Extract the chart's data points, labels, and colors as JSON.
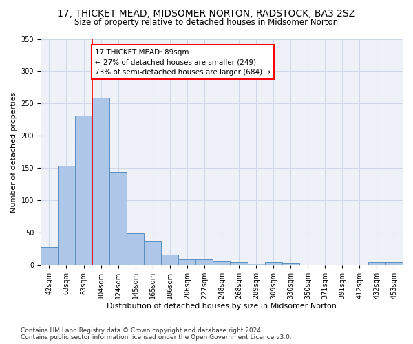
{
  "title": "17, THICKET MEAD, MIDSOMER NORTON, RADSTOCK, BA3 2SZ",
  "subtitle": "Size of property relative to detached houses in Midsomer Norton",
  "xlabel": "Distribution of detached houses by size in Midsomer Norton",
  "ylabel": "Number of detached properties",
  "categories": [
    "42sqm",
    "63sqm",
    "83sqm",
    "104sqm",
    "124sqm",
    "145sqm",
    "165sqm",
    "186sqm",
    "206sqm",
    "227sqm",
    "248sqm",
    "268sqm",
    "289sqm",
    "309sqm",
    "330sqm",
    "350sqm",
    "371sqm",
    "391sqm",
    "412sqm",
    "432sqm",
    "453sqm"
  ],
  "values": [
    28,
    154,
    231,
    259,
    144,
    49,
    36,
    16,
    9,
    9,
    6,
    5,
    2,
    5,
    3,
    0,
    0,
    0,
    0,
    5,
    5
  ],
  "bar_color": "#aec6e8",
  "bar_edge_color": "#5a8fc2",
  "annotation_text": "17 THICKET MEAD: 89sqm\n← 27% of detached houses are smaller (249)\n73% of semi-detached houses are larger (684) →",
  "annotation_box_color": "white",
  "annotation_box_edge_color": "red",
  "vline_color": "red",
  "vline_x": 2.5,
  "footnote": "Contains HM Land Registry data © Crown copyright and database right 2024.\nContains public sector information licensed under the Open Government Licence v3.0.",
  "ylim": [
    0,
    350
  ],
  "yticks": [
    0,
    50,
    100,
    150,
    200,
    250,
    300,
    350
  ],
  "grid_color": "#d0d8e8",
  "bg_color": "#eef2f8",
  "title_fontsize": 10,
  "subtitle_fontsize": 8.5,
  "axis_label_fontsize": 8,
  "tick_fontsize": 7,
  "footnote_fontsize": 6.5,
  "annotation_fontsize": 7.5
}
